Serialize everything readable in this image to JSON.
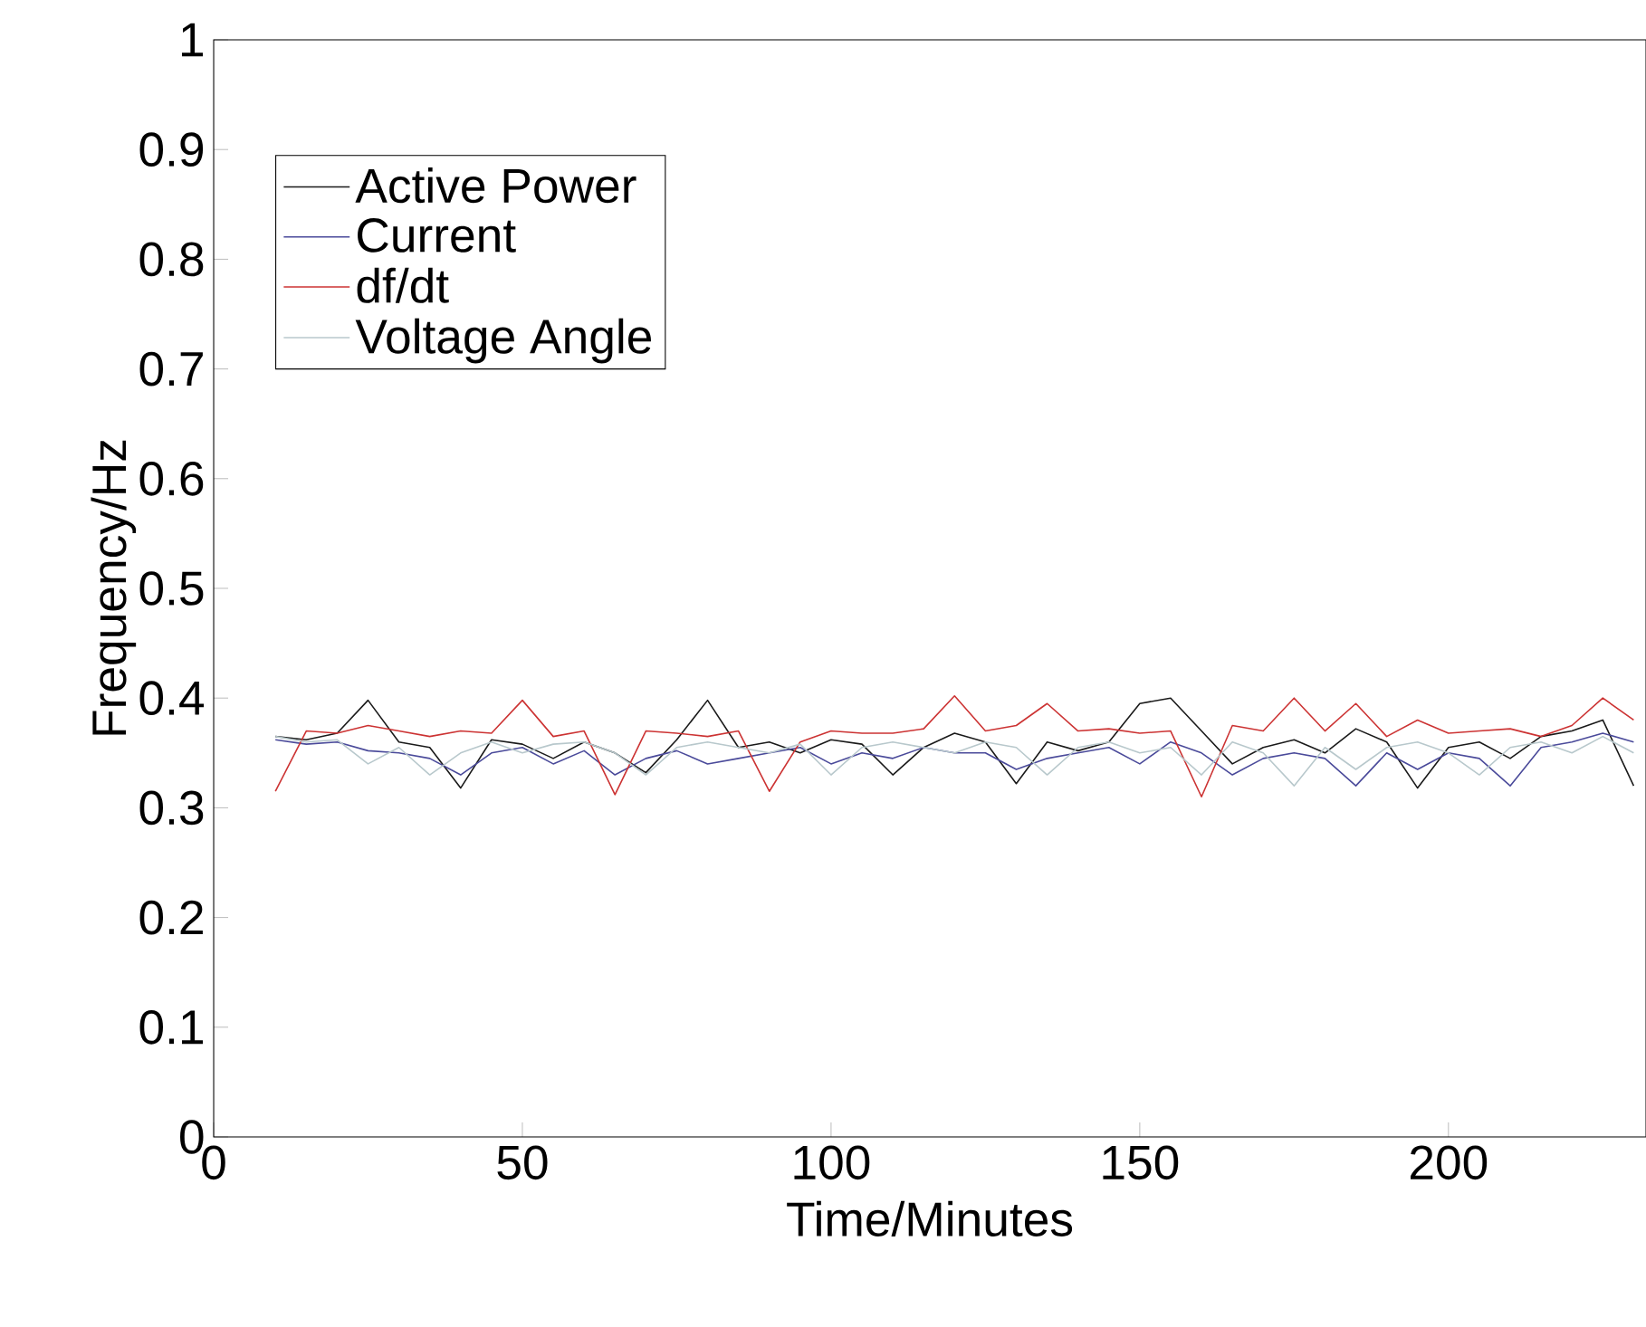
{
  "chart_data": {
    "type": "line",
    "xlabel": "Time/Minutes",
    "ylabel": "Frequency/Hz",
    "x": [
      10,
      15,
      20,
      25,
      30,
      35,
      40,
      45,
      50,
      55,
      60,
      65,
      70,
      75,
      80,
      85,
      90,
      95,
      100,
      105,
      110,
      115,
      120,
      125,
      130,
      135,
      140,
      145,
      150,
      155,
      160,
      165,
      170,
      175,
      180,
      185,
      190,
      195,
      200,
      205,
      210,
      215,
      220,
      225,
      230
    ],
    "xlim": [
      0,
      232
    ],
    "xticks": [
      0,
      50,
      100,
      150,
      200
    ],
    "ylim": [
      0,
      1
    ],
    "yticks": [
      0,
      0.1,
      0.2,
      0.3,
      0.4,
      0.5,
      0.6,
      0.7,
      0.8,
      0.9,
      1
    ],
    "legend": "top left",
    "grid": false,
    "marker": "none",
    "line_style": "solid",
    "series": [
      {
        "name": "Active Power",
        "color": "#1a1a1a",
        "values": [
          0.365,
          0.362,
          0.368,
          0.398,
          0.36,
          0.355,
          0.318,
          0.362,
          0.358,
          0.345,
          0.36,
          0.35,
          0.332,
          0.362,
          0.398,
          0.355,
          0.36,
          0.35,
          0.362,
          0.358,
          0.33,
          0.355,
          0.368,
          0.36,
          0.322,
          0.36,
          0.352,
          0.36,
          0.395,
          0.4,
          0.37,
          0.34,
          0.355,
          0.362,
          0.35,
          0.372,
          0.36,
          0.318,
          0.355,
          0.36,
          0.345,
          0.365,
          0.37,
          0.38,
          0.32
        ]
      },
      {
        "name": "Current",
        "color": "#4a4a9a",
        "values": [
          0.362,
          0.358,
          0.36,
          0.352,
          0.35,
          0.345,
          0.33,
          0.35,
          0.355,
          0.34,
          0.352,
          0.33,
          0.345,
          0.352,
          0.34,
          0.345,
          0.35,
          0.355,
          0.34,
          0.35,
          0.345,
          0.355,
          0.35,
          0.35,
          0.335,
          0.345,
          0.35,
          0.355,
          0.34,
          0.36,
          0.35,
          0.33,
          0.345,
          0.35,
          0.345,
          0.32,
          0.35,
          0.335,
          0.35,
          0.345,
          0.32,
          0.355,
          0.36,
          0.368,
          0.36
        ]
      },
      {
        "name": "df/dt",
        "color": "#cc3333",
        "values": [
          0.315,
          0.37,
          0.368,
          0.375,
          0.37,
          0.365,
          0.37,
          0.368,
          0.398,
          0.365,
          0.37,
          0.312,
          0.37,
          0.368,
          0.365,
          0.37,
          0.315,
          0.36,
          0.37,
          0.368,
          0.368,
          0.372,
          0.402,
          0.37,
          0.375,
          0.395,
          0.37,
          0.372,
          0.368,
          0.37,
          0.31,
          0.375,
          0.37,
          0.4,
          0.37,
          0.395,
          0.365,
          0.38,
          0.368,
          0.37,
          0.372,
          0.365,
          0.375,
          0.4,
          0.38
        ]
      },
      {
        "name": "Voltage Angle",
        "color": "#b8c8cc",
        "values": [
          0.365,
          0.36,
          0.362,
          0.34,
          0.355,
          0.33,
          0.35,
          0.36,
          0.35,
          0.358,
          0.36,
          0.35,
          0.33,
          0.355,
          0.36,
          0.355,
          0.35,
          0.358,
          0.33,
          0.355,
          0.36,
          0.355,
          0.35,
          0.36,
          0.355,
          0.33,
          0.355,
          0.36,
          0.35,
          0.355,
          0.33,
          0.36,
          0.35,
          0.32,
          0.355,
          0.335,
          0.355,
          0.36,
          0.35,
          0.33,
          0.355,
          0.36,
          0.35,
          0.365,
          0.35
        ]
      }
    ]
  }
}
